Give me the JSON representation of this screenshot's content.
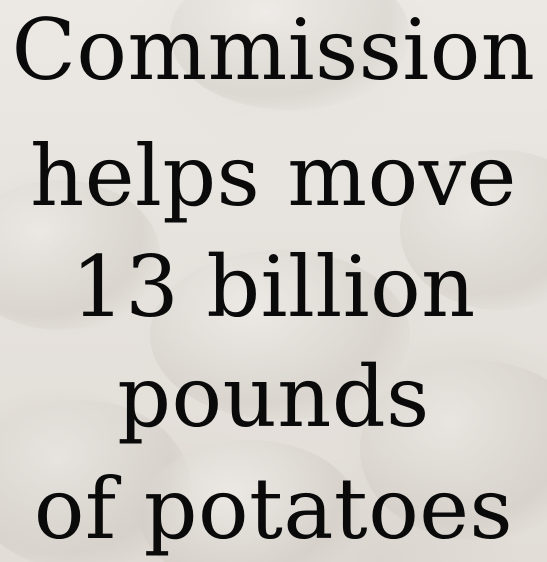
{
  "headline": {
    "lines": [
      "Commission",
      "helps move",
      "13 billion",
      "pounds",
      "of potatoes"
    ]
  },
  "background": {
    "icon": "potatoes-photo",
    "colors": {
      "base": "#e9e6e1",
      "text": "#0a0a0a"
    }
  }
}
